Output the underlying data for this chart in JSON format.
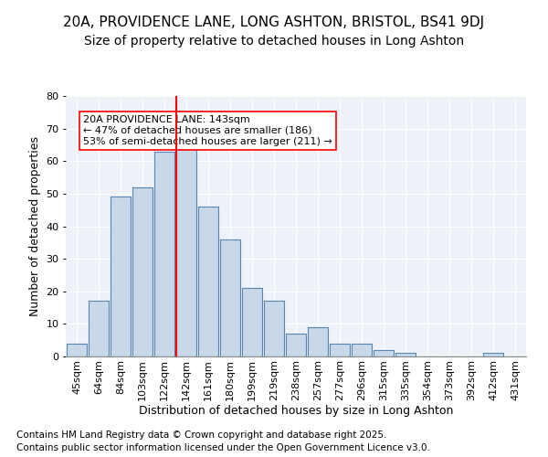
{
  "title": "20A, PROVIDENCE LANE, LONG ASHTON, BRISTOL, BS41 9DJ",
  "subtitle": "Size of property relative to detached houses in Long Ashton",
  "xlabel": "Distribution of detached houses by size in Long Ashton",
  "ylabel": "Number of detached properties",
  "bar_color": "#c8d8e8",
  "bar_edge_color": "#5585b0",
  "background_color": "#eef2f8",
  "bins": [
    "45sqm",
    "64sqm",
    "84sqm",
    "103sqm",
    "122sqm",
    "142sqm",
    "161sqm",
    "180sqm",
    "199sqm",
    "219sqm",
    "238sqm",
    "257sqm",
    "277sqm",
    "296sqm",
    "315sqm",
    "335sqm",
    "354sqm",
    "373sqm",
    "392sqm",
    "412sqm",
    "431sqm"
  ],
  "values": [
    4,
    17,
    49,
    52,
    63,
    66,
    46,
    36,
    21,
    17,
    7,
    9,
    4,
    4,
    2,
    1,
    0,
    0,
    0,
    1,
    0
  ],
  "property_line_x": 4.55,
  "annotation_text": "20A PROVIDENCE LANE: 143sqm\n← 47% of detached houses are smaller (186)\n53% of semi-detached houses are larger (211) →",
  "footnote1": "Contains HM Land Registry data © Crown copyright and database right 2025.",
  "footnote2": "Contains public sector information licensed under the Open Government Licence v3.0.",
  "ylim": [
    0,
    80
  ],
  "yticks": [
    0,
    10,
    20,
    30,
    40,
    50,
    60,
    70,
    80
  ],
  "title_fontsize": 11,
  "subtitle_fontsize": 10,
  "axis_label_fontsize": 9,
  "tick_fontsize": 8,
  "annotation_fontsize": 8,
  "footnote_fontsize": 7.5
}
